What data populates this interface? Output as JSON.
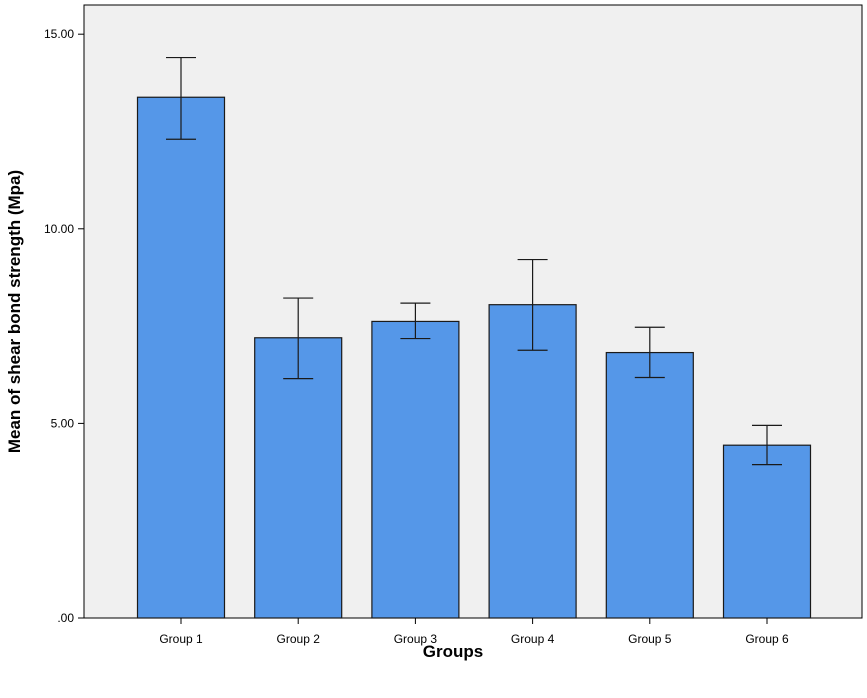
{
  "chart_data": {
    "type": "bar",
    "title": "",
    "xlabel": "Groups",
    "ylabel": "Mean of shear bond strength (Mpa)",
    "categories": [
      "Group 1",
      "Group 2",
      "Group 3",
      "Group 4",
      "Group 5",
      "Group 6"
    ],
    "values": [
      13.38,
      7.2,
      7.62,
      8.05,
      6.82,
      4.44
    ],
    "error_upper": [
      14.4,
      8.22,
      8.09,
      9.21,
      7.47,
      4.95
    ],
    "error_lower": [
      12.3,
      6.15,
      7.18,
      6.88,
      6.18,
      3.94
    ],
    "ylim": [
      0,
      15.75
    ],
    "yticks": [
      0,
      5,
      10,
      15
    ],
    "ytick_labels": [
      ".00",
      "5.00",
      "10.00",
      "15.00"
    ],
    "grid": false,
    "colors": {
      "plot_background": "#f0f0f0",
      "bar_fill": "#5597e8",
      "bar_stroke": "#1a1a1a",
      "error_bar": "#1a1a1a",
      "axis": "#000000"
    }
  }
}
